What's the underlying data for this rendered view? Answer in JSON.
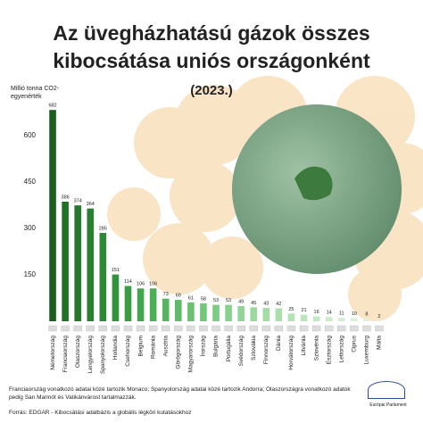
{
  "chart_data": {
    "type": "bar",
    "title": "Az üvegházhatású gázok összes kibocsátása uniós országonként",
    "subtitle": "(2023.)",
    "y_label": "Millió tonna CO2-egyenérték",
    "categories": [
      "Németország",
      "Franciaország",
      "Olaszország",
      "Lengyelország",
      "Spanyolország",
      "Hollandia",
      "Csehország",
      "Belgium",
      "Románia",
      "Ausztria",
      "Görögország",
      "Magyarország",
      "Írország",
      "Bulgária",
      "Portugália",
      "Svédország",
      "Szlovákia",
      "Finnország",
      "Dánia",
      "Horvátország",
      "Litvánia",
      "Szlovénia",
      "Észtország",
      "Lettország",
      "Ciprus",
      "Luxemburg",
      "Málta"
    ],
    "values": [
      682,
      386,
      374,
      364,
      285,
      151,
      114,
      106,
      106,
      73,
      69,
      61,
      58,
      53,
      53,
      49,
      45,
      43,
      42,
      25,
      21,
      16,
      14,
      11,
      10,
      8,
      2
    ],
    "colors": [
      "#1b5e20",
      "#207026",
      "#24792b",
      "#27812f",
      "#2b8a33",
      "#31943a",
      "#3a9d43",
      "#43a64c",
      "#4cae55",
      "#56b55e",
      "#60bb68",
      "#6ac171",
      "#74c67a",
      "#7ecb83",
      "#88d08c",
      "#92d495",
      "#9bd89e",
      "#a4dca6",
      "#addfae",
      "#b5e2b6",
      "#bde6be",
      "#c4e9c5",
      "#cbeccc",
      "#d1eed2",
      "#d7f1d8",
      "#ddf3de",
      "#e3f5e3"
    ],
    "ylim": [
      0,
      720
    ],
    "yticks": [
      150,
      300,
      450,
      600
    ],
    "grid": false
  },
  "footnote": "Franciaország vonatkozó adatai közé tartozik Monaco; Spanyolország adatai közé tartozik Andorra; Olaszországra vonatkozó adatok pedig San Marinót és Vatikánvárost tartalmazzák.",
  "source": "Forrás: EDGAR - Kibocsátási adatbázis a globális légköri kutatásokhoz",
  "logo_text": "Európai Parlament"
}
